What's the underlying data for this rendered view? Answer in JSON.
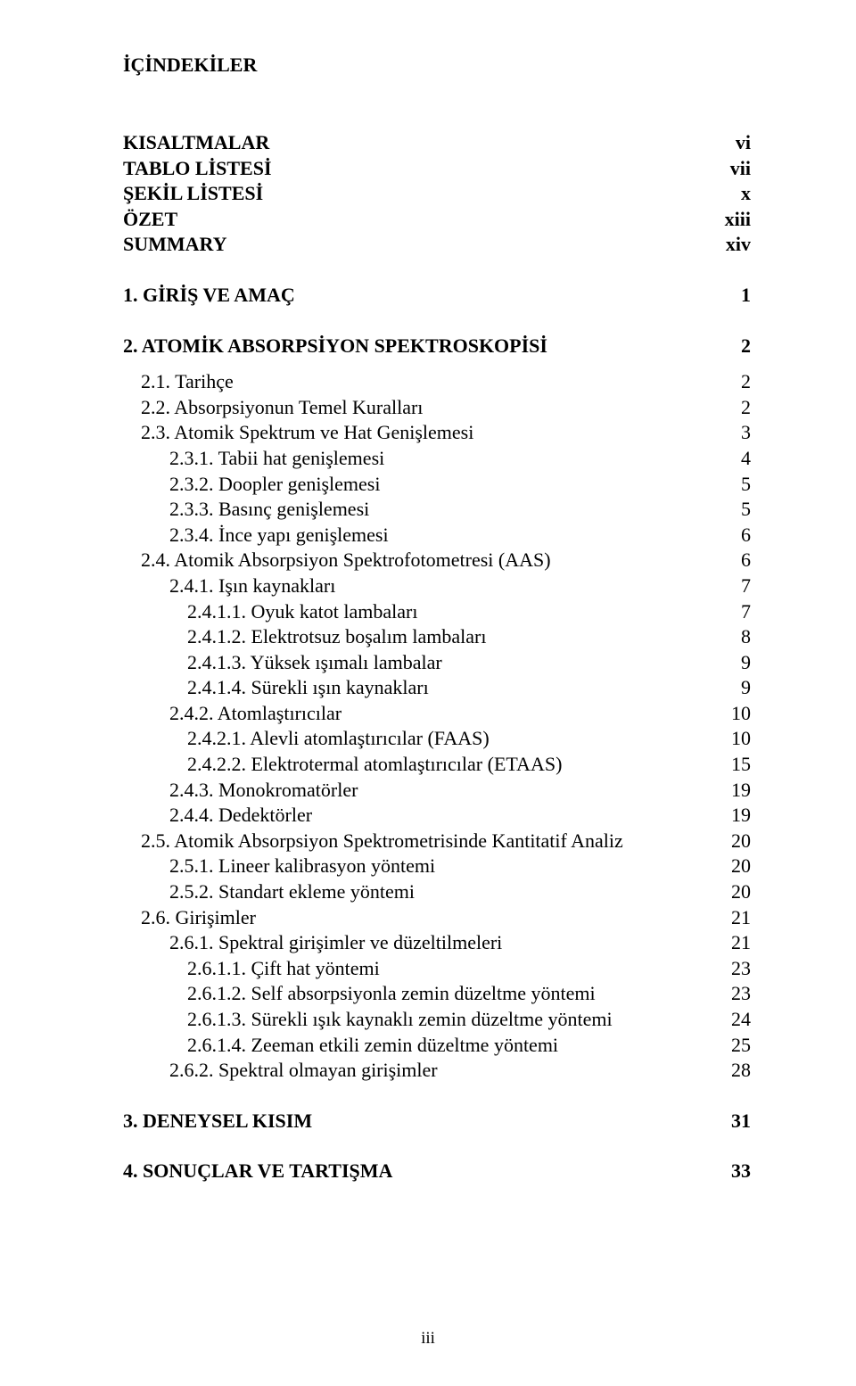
{
  "title": "İÇİNDEKİLER",
  "footer": "iii",
  "entries": [
    {
      "label": "KISALTMALAR",
      "page": "vi",
      "indent": 0,
      "bold": true
    },
    {
      "label": "TABLO LİSTESİ",
      "page": "vii",
      "indent": 0,
      "bold": true
    },
    {
      "label": "ŞEKİL LİSTESİ",
      "page": "x",
      "indent": 0,
      "bold": true
    },
    {
      "label": "ÖZET",
      "page": "xiii",
      "indent": 0,
      "bold": true
    },
    {
      "label": "SUMMARY",
      "page": "xiv",
      "indent": 0,
      "bold": true
    },
    {
      "gap": "med"
    },
    {
      "label": "1. GİRİŞ VE AMAÇ",
      "page": "1",
      "indent": 0,
      "bold": true
    },
    {
      "gap": "med"
    },
    {
      "label": "2. ATOMİK ABSORPSİYON SPEKTROSKOPİSİ",
      "page": "2",
      "indent": 0,
      "bold": true
    },
    {
      "gap": "small"
    },
    {
      "label": "2.1. Tarihçe",
      "page": "2",
      "indent": 1,
      "bold": false
    },
    {
      "label": "2.2. Absorpsiyonun Temel Kuralları",
      "page": "2",
      "indent": 1,
      "bold": false
    },
    {
      "label": "2.3. Atomik Spektrum ve Hat Genişlemesi",
      "page": "3",
      "indent": 1,
      "bold": false
    },
    {
      "label": "2.3.1. Tabii hat genişlemesi",
      "page": "4",
      "indent": 2,
      "bold": false
    },
    {
      "label": "2.3.2. Doopler genişlemesi",
      "page": "5",
      "indent": 2,
      "bold": false
    },
    {
      "label": "2.3.3. Basınç genişlemesi",
      "page": "5",
      "indent": 2,
      "bold": false
    },
    {
      "label": "2.3.4. İnce yapı genişlemesi",
      "page": "6",
      "indent": 2,
      "bold": false
    },
    {
      "label": "2.4. Atomik Absorpsiyon Spektrofotometresi (AAS)",
      "page": "6",
      "indent": 1,
      "bold": false
    },
    {
      "label": "2.4.1. Işın kaynakları",
      "page": "7",
      "indent": 2,
      "bold": false
    },
    {
      "label": "2.4.1.1. Oyuk katot lambaları",
      "page": "7",
      "indent": 3,
      "bold": false
    },
    {
      "label": "2.4.1.2. Elektrotsuz boşalım lambaları",
      "page": "8",
      "indent": 3,
      "bold": false
    },
    {
      "label": "2.4.1.3. Yüksek ışımalı lambalar",
      "page": "9",
      "indent": 3,
      "bold": false
    },
    {
      "label": "2.4.1.4. Sürekli ışın kaynakları",
      "page": "9",
      "indent": 3,
      "bold": false
    },
    {
      "label": "2.4.2. Atomlaştırıcılar",
      "page": "10",
      "indent": 2,
      "bold": false
    },
    {
      "label": "2.4.2.1. Alevli atomlaştırıcılar (FAAS)",
      "page": "10",
      "indent": 3,
      "bold": false
    },
    {
      "label": "2.4.2.2. Elektrotermal atomlaştırıcılar (ETAAS)",
      "page": "15",
      "indent": 3,
      "bold": false
    },
    {
      "label": "2.4.3. Monokromatörler",
      "page": "19",
      "indent": 2,
      "bold": false
    },
    {
      "label": "2.4.4. Dedektörler",
      "page": "19",
      "indent": 2,
      "bold": false
    },
    {
      "label": "2.5. Atomik Absorpsiyon Spektrometrisinde Kantitatif Analiz",
      "page": "20",
      "indent": 1,
      "bold": false
    },
    {
      "label": "2.5.1. Lineer kalibrasyon yöntemi",
      "page": "20",
      "indent": 2,
      "bold": false
    },
    {
      "label": "2.5.2. Standart ekleme yöntemi",
      "page": "20",
      "indent": 2,
      "bold": false
    },
    {
      "label": "2.6. Girişimler",
      "page": "21",
      "indent": 1,
      "bold": false
    },
    {
      "label": "2.6.1. Spektral girişimler ve düzeltilmeleri",
      "page": "21",
      "indent": 2,
      "bold": false
    },
    {
      "label": "2.6.1.1. Çift hat yöntemi",
      "page": "23",
      "indent": 3,
      "bold": false
    },
    {
      "label": "2.6.1.2. Self absorpsiyonla zemin düzeltme yöntemi",
      "page": "23",
      "indent": 3,
      "bold": false
    },
    {
      "label": "2.6.1.3. Sürekli ışık kaynaklı zemin düzeltme yöntemi",
      "page": "24",
      "indent": 3,
      "bold": false
    },
    {
      "label": "2.6.1.4. Zeeman etkili zemin düzeltme yöntemi",
      "page": "25",
      "indent": 3,
      "bold": false
    },
    {
      "label": "2.6.2. Spektral olmayan girişimler",
      "page": "28",
      "indent": 2,
      "bold": false
    },
    {
      "gap": "med"
    },
    {
      "label": "3. DENEYSEL KISIM",
      "page": "31",
      "indent": 0,
      "bold": true
    },
    {
      "gap": "med"
    },
    {
      "label": "4. SONUÇLAR VE TARTIŞMA",
      "page": "33",
      "indent": 0,
      "bold": true
    }
  ]
}
